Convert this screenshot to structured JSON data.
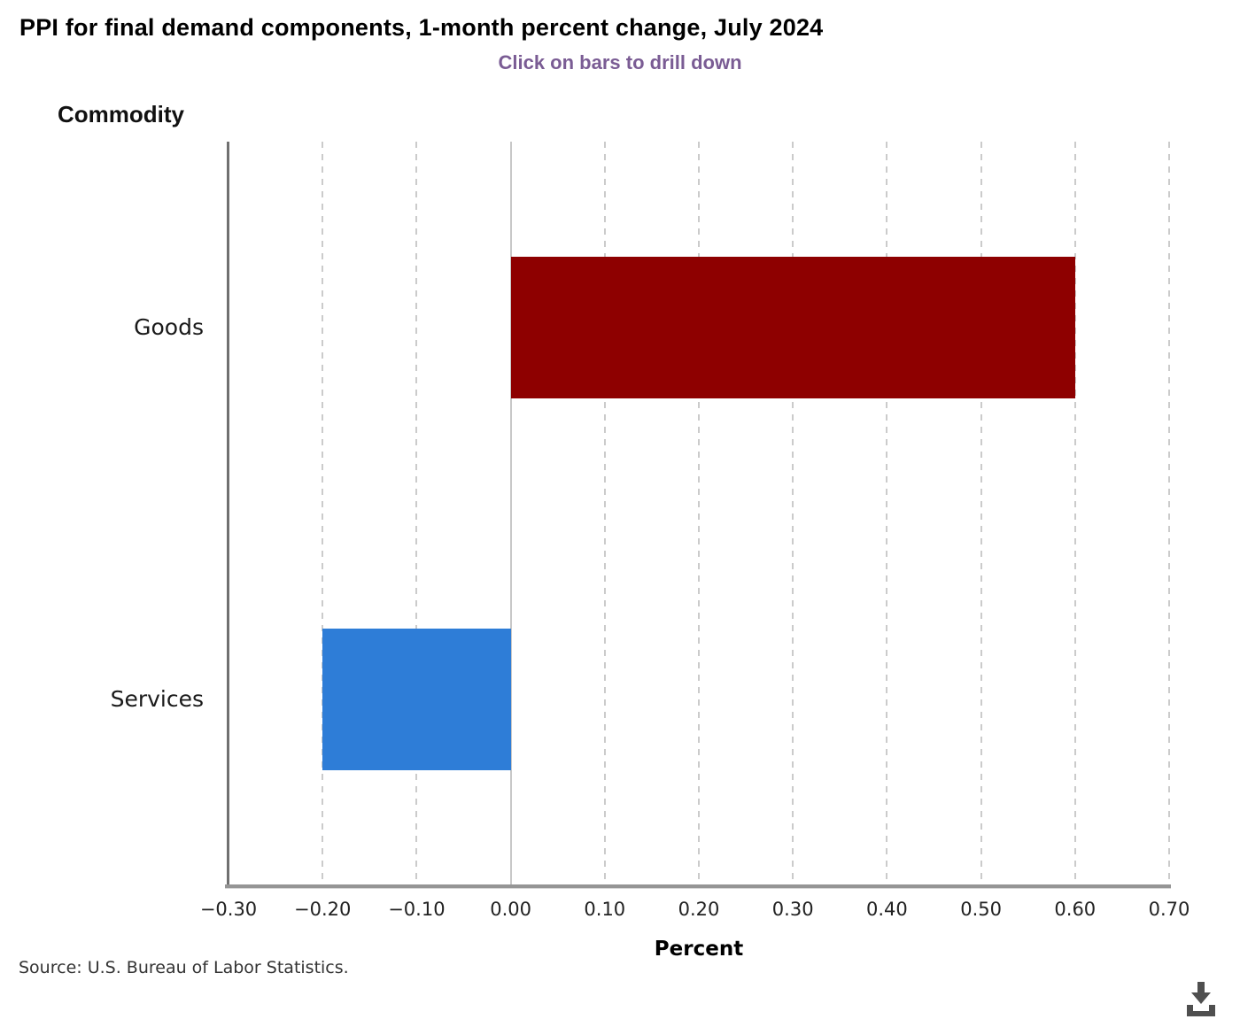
{
  "chart_data": {
    "type": "bar",
    "orientation": "horizontal",
    "title": "PPI for final demand components, 1-month percent change, July 2024",
    "subtitle": "Click on bars to drill down",
    "y_axis_title": "Commodity",
    "x_axis_title": "Percent",
    "categories": [
      "Goods",
      "Services"
    ],
    "values": [
      0.6,
      -0.2
    ],
    "bar_colors": [
      "#8E0000",
      "#2E7DD7"
    ],
    "xlim": [
      -0.3,
      0.7
    ],
    "xticks": [
      -0.3,
      -0.2,
      -0.1,
      0,
      0.1,
      0.2,
      0.3,
      0.4,
      0.5,
      0.6,
      0.7
    ],
    "xtick_labels": [
      "−0.30",
      "−0.20",
      "−0.10",
      "0.00",
      "0.10",
      "0.20",
      "0.30",
      "0.40",
      "0.50",
      "0.60",
      "0.70"
    ],
    "grid": "vertical-dashed",
    "legend": "none",
    "source": "Source: U.S. Bureau of Labor Statistics."
  },
  "icons": {
    "download": "download-icon"
  },
  "colors": {
    "subtitle": "#7A5C94",
    "goods_bar": "#8E0000",
    "services_bar": "#2E7DD7",
    "gridline": "#CBCBCB",
    "x_axis_line": "#959595",
    "y_axis_line": "#707070",
    "download_icon": "#4F4F4F"
  }
}
